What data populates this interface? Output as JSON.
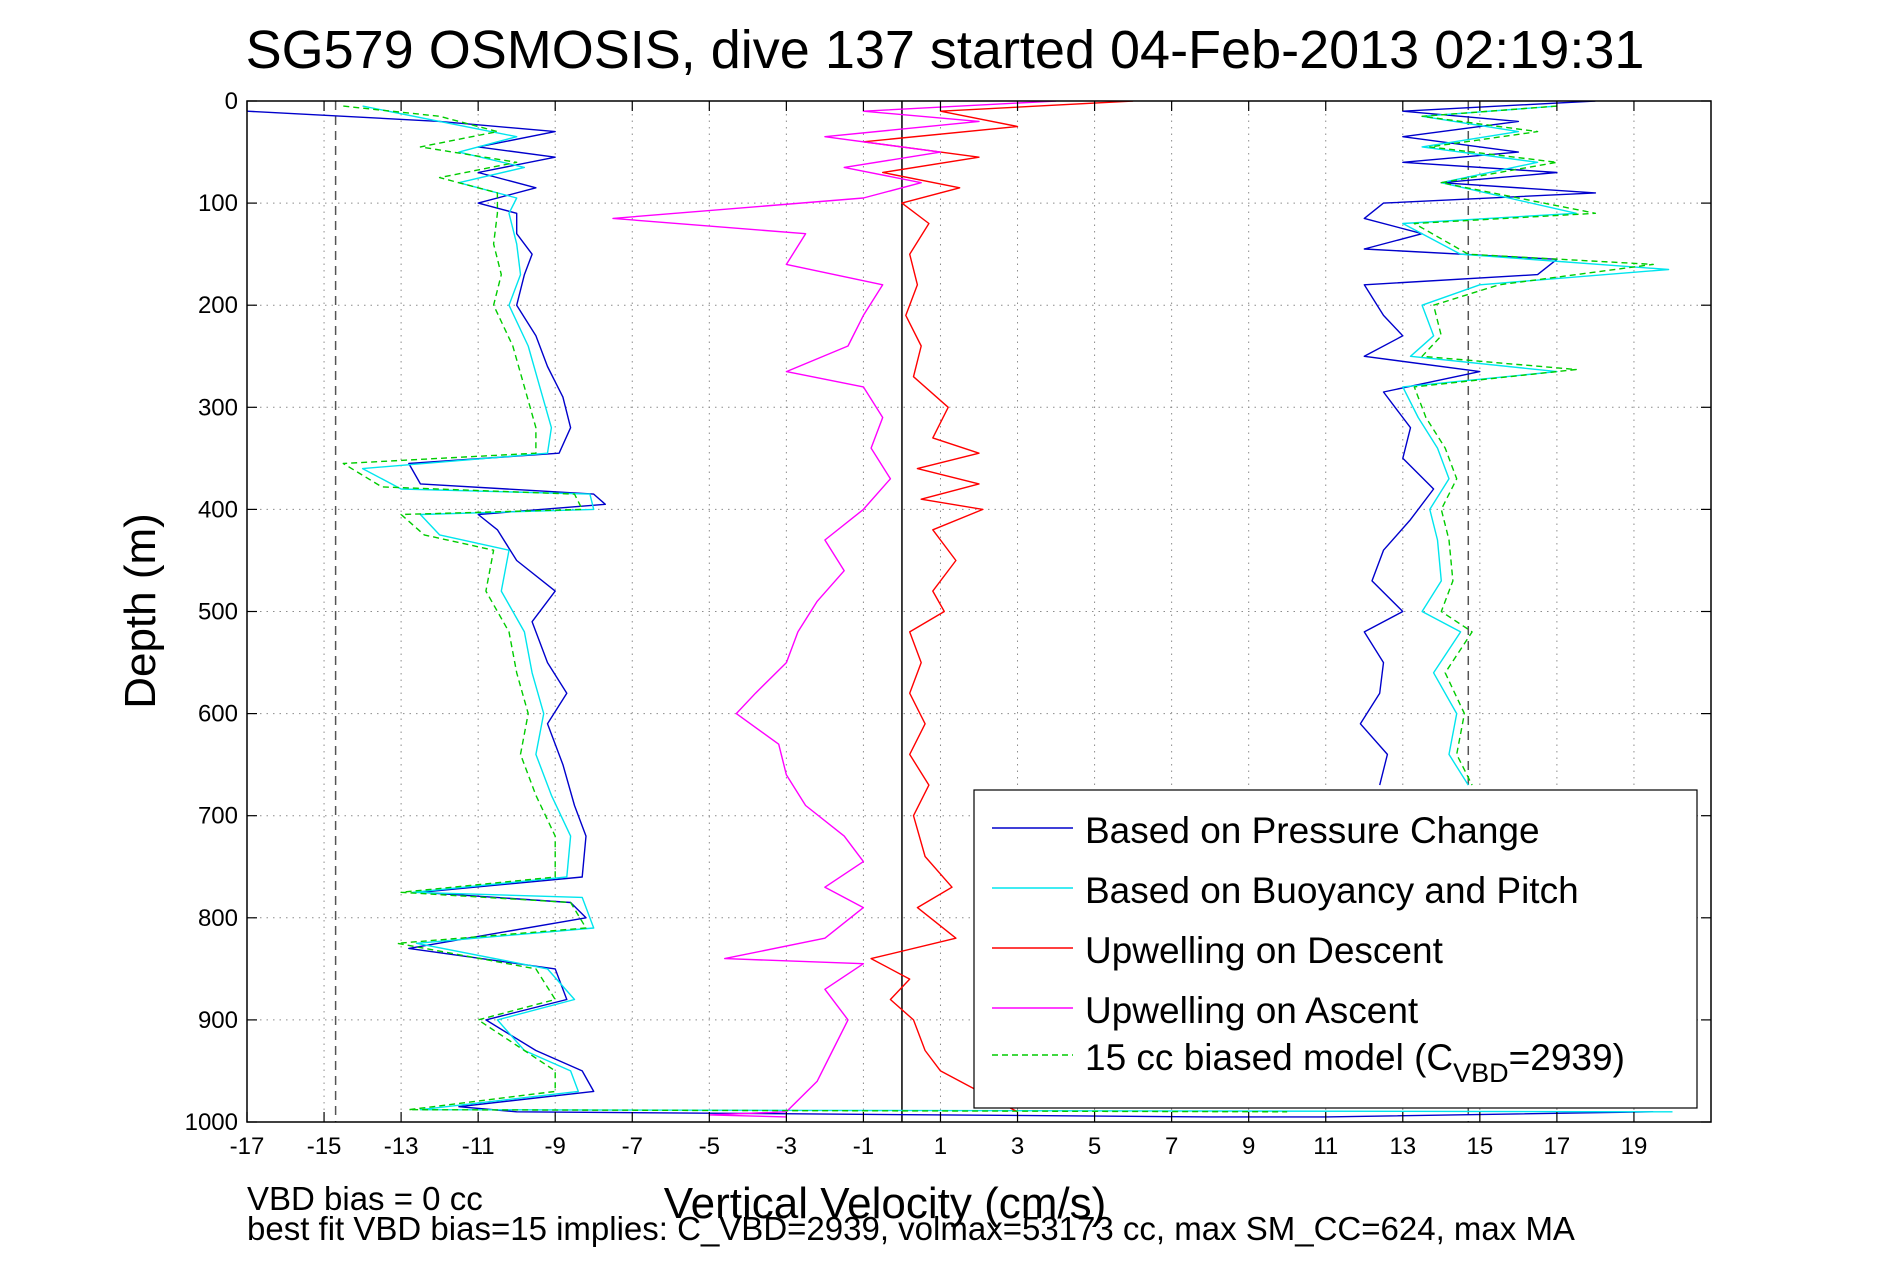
{
  "chart_data": {
    "type": "line",
    "title": "SG579 OSMOSIS, dive 137 started 04-Feb-2013 02:19:31",
    "xlabel": "Vertical Velocity (cm/s)",
    "ylabel": "Depth (m)",
    "xlim": [
      -17,
      21
    ],
    "ylim": [
      0,
      1000
    ],
    "y_reversed": true,
    "grid": "dotted",
    "xticks": [
      -17,
      -15,
      -13,
      -11,
      -9,
      -7,
      -5,
      -3,
      -1,
      1,
      3,
      5,
      7,
      9,
      11,
      13,
      15,
      17,
      19
    ],
    "yticks": [
      0,
      100,
      200,
      300,
      400,
      500,
      600,
      700,
      800,
      900,
      1000
    ],
    "legend_position": "bottom-right",
    "reference_lines": [
      {
        "x": 0,
        "style": "solid",
        "color": "#000000"
      },
      {
        "x": -14.7,
        "style": "dashed",
        "color": "#555555"
      },
      {
        "x": 14.7,
        "style": "dashed",
        "color": "#555555"
      }
    ],
    "series": [
      {
        "name": "Based on Pressure Change",
        "color": "#0000cc",
        "style": "solid",
        "points": [
          [
            -17,
            10
          ],
          [
            -12,
            20
          ],
          [
            -9,
            30
          ],
          [
            -11,
            45
          ],
          [
            -9,
            55
          ],
          [
            -11,
            70
          ],
          [
            -9.5,
            85
          ],
          [
            -11,
            100
          ],
          [
            -10,
            110
          ],
          [
            -10,
            130
          ],
          [
            -9.6,
            150
          ],
          [
            -9.8,
            170
          ],
          [
            -10,
            200
          ],
          [
            -9.5,
            230
          ],
          [
            -9.2,
            260
          ],
          [
            -8.8,
            290
          ],
          [
            -8.6,
            320
          ],
          [
            -8.9,
            345
          ],
          [
            -12.8,
            355
          ],
          [
            -12.5,
            375
          ],
          [
            -8,
            385
          ],
          [
            -7.7,
            395
          ],
          [
            -11,
            405
          ],
          [
            -10.5,
            420
          ],
          [
            -10,
            450
          ],
          [
            -9,
            480
          ],
          [
            -9.6,
            510
          ],
          [
            -9.2,
            550
          ],
          [
            -8.7,
            580
          ],
          [
            -9.2,
            610
          ],
          [
            -8.8,
            650
          ],
          [
            -8.5,
            690
          ],
          [
            -8.2,
            720
          ],
          [
            -8.3,
            760
          ],
          [
            -12.5,
            775
          ],
          [
            -8.6,
            785
          ],
          [
            -8.2,
            800
          ],
          [
            -12.8,
            830
          ],
          [
            -9,
            850
          ],
          [
            -8.7,
            880
          ],
          [
            -10.8,
            900
          ],
          [
            -9.5,
            930
          ],
          [
            -8.3,
            950
          ],
          [
            -8,
            970
          ],
          [
            -11.5,
            985
          ],
          [
            -10,
            990
          ],
          [
            8,
            995
          ],
          [
            11,
            995
          ],
          [
            19.5,
            990
          ]
        ]
      },
      {
        "name": "Based on Buoyancy and Pitch",
        "color": "#00e5ee",
        "style": "solid",
        "points": [
          [
            -14,
            5
          ],
          [
            -12,
            20
          ],
          [
            -10,
            35
          ],
          [
            -11.5,
            50
          ],
          [
            -9.8,
            65
          ],
          [
            -11.5,
            80
          ],
          [
            -10,
            95
          ],
          [
            -10.2,
            110
          ],
          [
            -10,
            140
          ],
          [
            -9.9,
            170
          ],
          [
            -10.2,
            200
          ],
          [
            -9.7,
            240
          ],
          [
            -9.4,
            280
          ],
          [
            -9.1,
            320
          ],
          [
            -9.2,
            345
          ],
          [
            -14,
            360
          ],
          [
            -13,
            380
          ],
          [
            -8.1,
            385
          ],
          [
            -8,
            400
          ],
          [
            -12.5,
            405
          ],
          [
            -12,
            425
          ],
          [
            -10.2,
            440
          ],
          [
            -10.4,
            480
          ],
          [
            -9.8,
            520
          ],
          [
            -9.6,
            560
          ],
          [
            -9.3,
            600
          ],
          [
            -9.5,
            640
          ],
          [
            -9.1,
            680
          ],
          [
            -8.6,
            720
          ],
          [
            -8.7,
            760
          ],
          [
            -12.7,
            775
          ],
          [
            -8.3,
            780
          ],
          [
            -8,
            810
          ],
          [
            -12.6,
            825
          ],
          [
            -9.2,
            850
          ],
          [
            -8.5,
            880
          ],
          [
            -10.5,
            900
          ],
          [
            -9.8,
            930
          ],
          [
            -8.6,
            950
          ],
          [
            -8.4,
            970
          ],
          [
            -12.5,
            988
          ],
          [
            20,
            990
          ]
        ]
      },
      {
        "name": "Upwelling on Descent",
        "color": "#ff0000",
        "style": "solid",
        "points": [
          [
            6,
            0
          ],
          [
            1,
            10
          ],
          [
            3,
            25
          ],
          [
            -1,
            40
          ],
          [
            2,
            55
          ],
          [
            -0.5,
            70
          ],
          [
            1.5,
            85
          ],
          [
            0,
            100
          ],
          [
            0.7,
            120
          ],
          [
            0.2,
            150
          ],
          [
            0.4,
            180
          ],
          [
            0.1,
            210
          ],
          [
            0.5,
            240
          ],
          [
            0.3,
            270
          ],
          [
            1.2,
            300
          ],
          [
            0.8,
            330
          ],
          [
            2,
            345
          ],
          [
            0.4,
            360
          ],
          [
            2,
            375
          ],
          [
            0.5,
            390
          ],
          [
            2.1,
            400
          ],
          [
            0.8,
            420
          ],
          [
            1.4,
            450
          ],
          [
            0.8,
            480
          ],
          [
            1.1,
            500
          ],
          [
            0.2,
            520
          ],
          [
            0.5,
            550
          ],
          [
            0.2,
            580
          ],
          [
            0.6,
            610
          ],
          [
            0.2,
            640
          ],
          [
            0.7,
            670
          ],
          [
            0.3,
            700
          ],
          [
            0.6,
            740
          ],
          [
            1.3,
            770
          ],
          [
            0.4,
            790
          ],
          [
            1.4,
            820
          ],
          [
            -0.8,
            840
          ],
          [
            0.2,
            860
          ],
          [
            -0.3,
            880
          ],
          [
            0.3,
            900
          ],
          [
            0.6,
            930
          ],
          [
            1,
            950
          ],
          [
            2,
            970
          ],
          [
            3,
            990
          ]
        ]
      },
      {
        "name": "Upwelling on Ascent",
        "color": "#ff00ff",
        "style": "solid",
        "points": [
          [
            4,
            0
          ],
          [
            -1,
            10
          ],
          [
            2,
            20
          ],
          [
            -2,
            35
          ],
          [
            1,
            50
          ],
          [
            -1.5,
            65
          ],
          [
            0.5,
            80
          ],
          [
            -1,
            95
          ],
          [
            -7.5,
            115
          ],
          [
            -2.5,
            130
          ],
          [
            -3,
            160
          ],
          [
            -0.5,
            180
          ],
          [
            -1,
            210
          ],
          [
            -1.4,
            240
          ],
          [
            -3,
            265
          ],
          [
            -1,
            280
          ],
          [
            -0.5,
            310
          ],
          [
            -0.8,
            340
          ],
          [
            -0.3,
            370
          ],
          [
            -1,
            400
          ],
          [
            -2,
            430
          ],
          [
            -1.5,
            460
          ],
          [
            -2.2,
            490
          ],
          [
            -2.7,
            520
          ],
          [
            -3,
            550
          ],
          [
            -3.8,
            580
          ],
          [
            -4.3,
            600
          ],
          [
            -3.2,
            630
          ],
          [
            -3,
            660
          ],
          [
            -2.5,
            690
          ],
          [
            -1.5,
            720
          ],
          [
            -1,
            745
          ],
          [
            -2,
            770
          ],
          [
            -1,
            790
          ],
          [
            -2,
            820
          ],
          [
            -4.6,
            840
          ],
          [
            -1,
            845
          ],
          [
            -2,
            870
          ],
          [
            -1.4,
            900
          ],
          [
            -1.8,
            930
          ],
          [
            -2.2,
            960
          ],
          [
            -3,
            990
          ],
          [
            -5,
            993
          ],
          [
            -3,
            995
          ]
        ]
      },
      {
        "name": "15 cc biased model",
        "label_main": "15 cc biased model (C",
        "label_sub": "VBD",
        "label_tail": "=2939)",
        "color": "#00cc00",
        "style": "dashed",
        "points": [
          [
            -14.5,
            5
          ],
          [
            -12,
            15
          ],
          [
            -10.5,
            30
          ],
          [
            -12.5,
            45
          ],
          [
            -10,
            60
          ],
          [
            -12,
            75
          ],
          [
            -10.5,
            90
          ],
          [
            -10.5,
            110
          ],
          [
            -10.6,
            140
          ],
          [
            -10.4,
            170
          ],
          [
            -10.6,
            200
          ],
          [
            -10.1,
            240
          ],
          [
            -9.8,
            280
          ],
          [
            -9.5,
            320
          ],
          [
            -9.5,
            345
          ],
          [
            -14.5,
            355
          ],
          [
            -13.5,
            378
          ],
          [
            -8.5,
            385
          ],
          [
            -8.3,
            400
          ],
          [
            -13,
            405
          ],
          [
            -12.4,
            425
          ],
          [
            -10.6,
            440
          ],
          [
            -10.8,
            480
          ],
          [
            -10.2,
            520
          ],
          [
            -10,
            560
          ],
          [
            -9.7,
            600
          ],
          [
            -9.9,
            640
          ],
          [
            -9.5,
            680
          ],
          [
            -9,
            720
          ],
          [
            -9,
            760
          ],
          [
            -13,
            775
          ],
          [
            -8.6,
            785
          ],
          [
            -8.2,
            810
          ],
          [
            -13.1,
            825
          ],
          [
            -9.5,
            850
          ],
          [
            -9,
            880
          ],
          [
            -11,
            900
          ],
          [
            -9.8,
            930
          ],
          [
            -9,
            950
          ],
          [
            -9,
            970
          ],
          [
            -12.8,
            988
          ],
          [
            10,
            990
          ]
        ]
      }
    ],
    "ascent_series_points": {
      "pressure": [
        [
          18,
          0
        ],
        [
          13,
          10
        ],
        [
          16,
          20
        ],
        [
          13,
          35
        ],
        [
          16,
          50
        ],
        [
          13,
          60
        ],
        [
          17,
          70
        ],
        [
          14,
          80
        ],
        [
          18,
          90
        ],
        [
          12.5,
          100
        ],
        [
          12,
          115
        ],
        [
          13.5,
          130
        ],
        [
          12,
          145
        ],
        [
          17,
          155
        ],
        [
          16.5,
          170
        ],
        [
          12,
          180
        ],
        [
          12.5,
          210
        ],
        [
          13,
          230
        ],
        [
          12,
          250
        ],
        [
          15,
          265
        ],
        [
          12.5,
          285
        ],
        [
          13.2,
          320
        ],
        [
          13,
          350
        ],
        [
          13.8,
          380
        ],
        [
          13.2,
          410
        ],
        [
          12.5,
          440
        ],
        [
          12.2,
          470
        ],
        [
          13,
          500
        ],
        [
          12,
          520
        ],
        [
          12.5,
          550
        ],
        [
          12.4,
          580
        ],
        [
          11.9,
          610
        ],
        [
          12.6,
          640
        ],
        [
          12.4,
          670
        ]
      ],
      "buoyancy": [
        [
          17,
          5
        ],
        [
          13.5,
          15
        ],
        [
          16,
          30
        ],
        [
          13.5,
          45
        ],
        [
          16.5,
          60
        ],
        [
          14,
          80
        ],
        [
          17.5,
          110
        ],
        [
          13,
          120
        ],
        [
          14.5,
          150
        ],
        [
          19.9,
          165
        ],
        [
          15,
          180
        ],
        [
          13.5,
          200
        ],
        [
          13.8,
          230
        ],
        [
          13.2,
          250
        ],
        [
          17,
          265
        ],
        [
          13,
          280
        ],
        [
          13.4,
          310
        ],
        [
          13.9,
          340
        ],
        [
          14.2,
          370
        ],
        [
          13.7,
          400
        ],
        [
          13.9,
          430
        ],
        [
          14,
          470
        ],
        [
          13.5,
          500
        ],
        [
          14.5,
          520
        ],
        [
          13.8,
          560
        ],
        [
          14.4,
          600
        ],
        [
          14.2,
          640
        ],
        [
          14.7,
          670
        ]
      ],
      "model": [
        [
          17,
          5
        ],
        [
          13.5,
          15
        ],
        [
          16.5,
          30
        ],
        [
          13.7,
          45
        ],
        [
          17,
          60
        ],
        [
          14,
          80
        ],
        [
          18,
          110
        ],
        [
          13.3,
          120
        ],
        [
          14.7,
          150
        ],
        [
          19.5,
          160
        ],
        [
          15.5,
          180
        ],
        [
          13.8,
          200
        ],
        [
          14,
          230
        ],
        [
          13.5,
          250
        ],
        [
          17.5,
          263
        ],
        [
          13.3,
          280
        ],
        [
          13.6,
          310
        ],
        [
          14.1,
          340
        ],
        [
          14.4,
          370
        ],
        [
          14,
          400
        ],
        [
          14.2,
          430
        ],
        [
          14.3,
          470
        ],
        [
          14,
          500
        ],
        [
          14.8,
          520
        ],
        [
          14.1,
          560
        ],
        [
          14.6,
          600
        ],
        [
          14.4,
          640
        ],
        [
          14.8,
          670
        ]
      ]
    }
  },
  "notes": {
    "line1": "VBD bias = 0 cc",
    "line2": "best fit VBD bias=15 implies: C_VBD=2939, volmax=53173 cc, max SM_CC=624, max MA"
  }
}
